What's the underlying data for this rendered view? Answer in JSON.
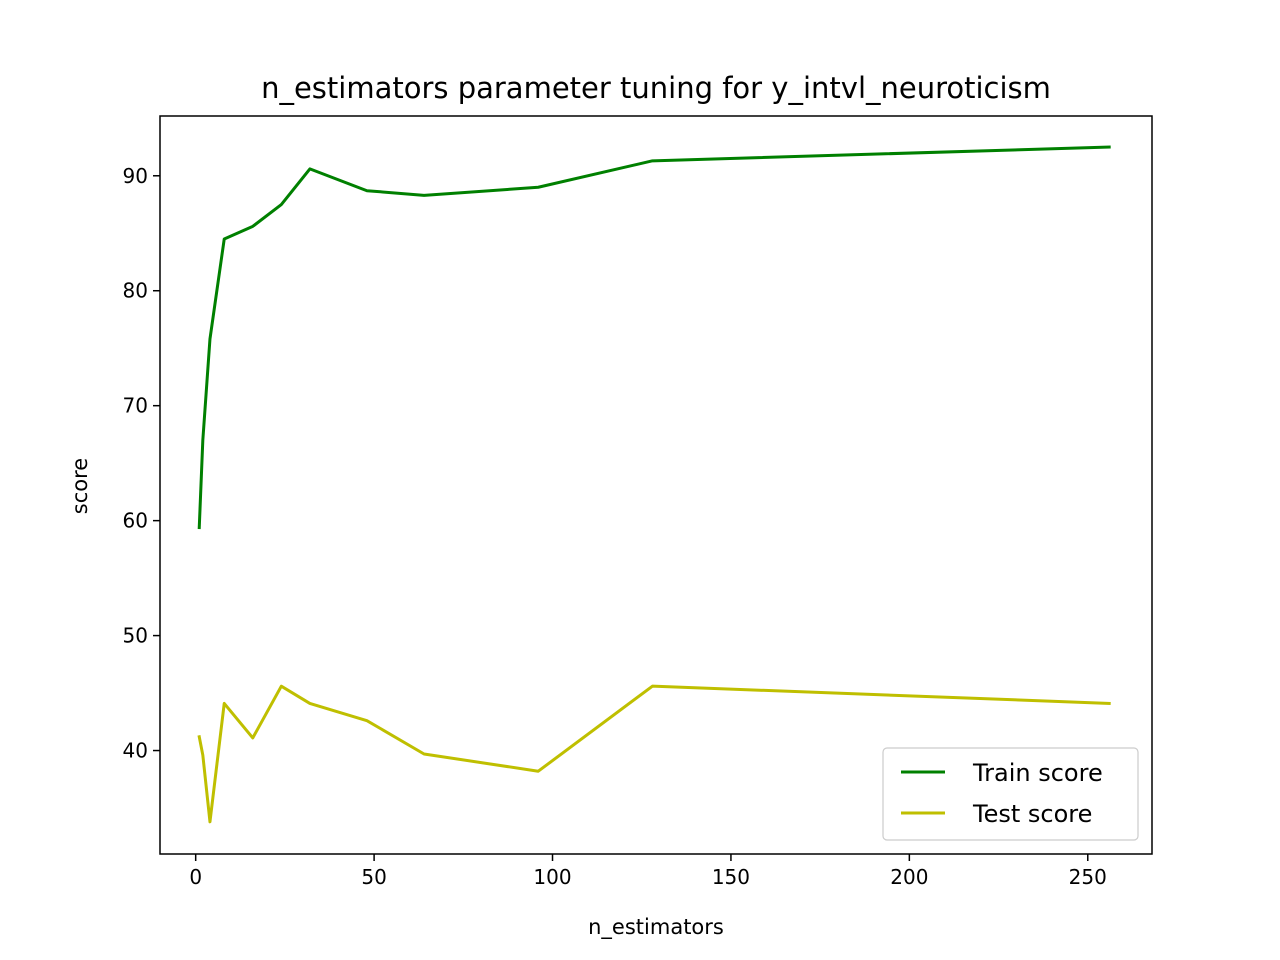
{
  "chart_data": {
    "type": "line",
    "title": "n_estimators parameter tuning for y_intvl_neuroticism",
    "xlabel": "n_estimators",
    "ylabel": "score",
    "xlim": [
      -10,
      268
    ],
    "ylim": [
      31,
      95.2
    ],
    "xticks": [
      0,
      50,
      100,
      150,
      200,
      250
    ],
    "yticks": [
      40,
      50,
      60,
      70,
      80,
      90
    ],
    "grid": false,
    "legend_position": "lower right",
    "series": [
      {
        "name": "Train score",
        "color": "#008000",
        "x": [
          1,
          2,
          4,
          8,
          16,
          24,
          32,
          48,
          64,
          96,
          128,
          256
        ],
        "y": [
          59.4,
          67.0,
          75.8,
          84.5,
          85.6,
          87.5,
          90.6,
          88.7,
          88.3,
          89.0,
          91.3,
          92.5
        ]
      },
      {
        "name": "Test score",
        "color": "#bfbf00",
        "x": [
          1,
          2,
          4,
          8,
          16,
          24,
          32,
          48,
          64,
          96,
          128,
          256
        ],
        "y": [
          41.2,
          39.6,
          33.8,
          44.1,
          41.1,
          45.6,
          44.1,
          42.6,
          39.7,
          38.2,
          45.6,
          44.1
        ]
      }
    ]
  }
}
